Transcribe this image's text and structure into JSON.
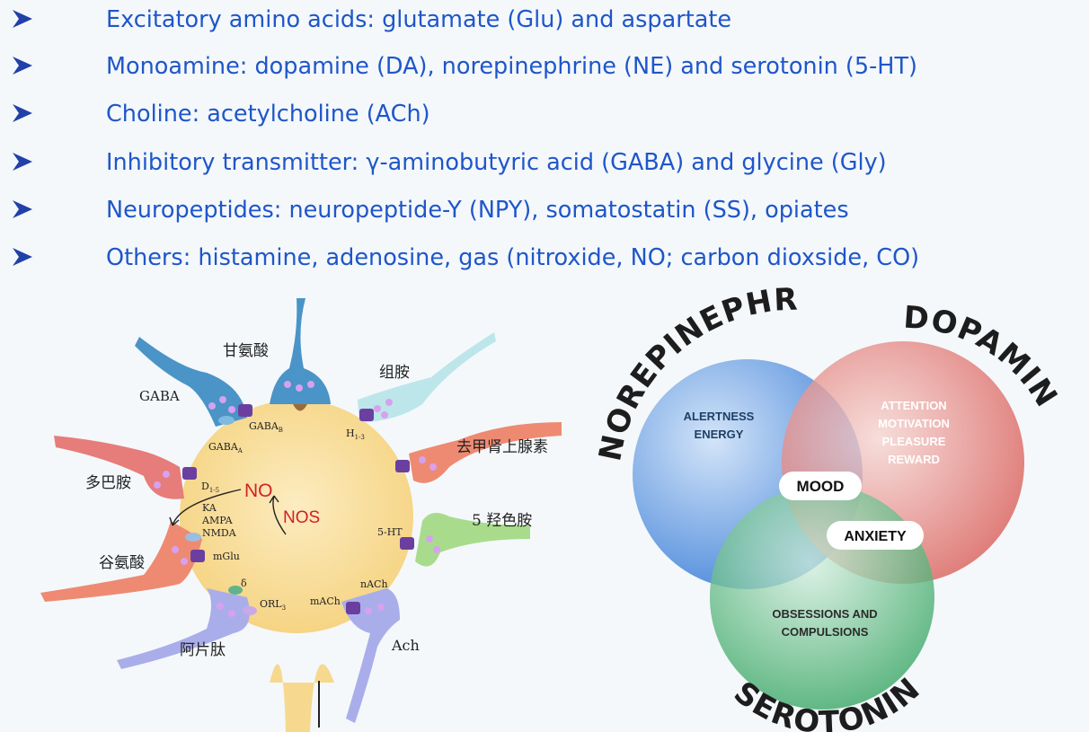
{
  "bullets": [
    "Excitatory amino acids: glutamate (Glu) and aspartate",
    "Monoamine: dopamine (DA), norepinephrine (NE) and serotonin (5-HT)",
    "Choline: acetylcholine (ACh)",
    "Inhibitory transmitter: γ-aminobutyric acid (GABA) and glycine (Gly)",
    "Neuropeptides: neuropeptide-Y (NPY), somatostatin (SS), opiates",
    "Others: histamine, adenosine, gas (nitroxide, NO; carbon dioxside, CO)"
  ],
  "neuron": {
    "glycine": "甘氨酸",
    "gaba": "GABA",
    "histamine": "组胺",
    "norepinephrine": "去甲肾上腺素",
    "dopamine": "多巴胺",
    "serotonin": "5 羟色胺",
    "glutamate": "谷氨酸",
    "opioid": "阿片肽",
    "ach": "Ach",
    "r_gaba_b": "GABA",
    "r_gaba_b_sub": "B",
    "r_gaba_a": "GABA",
    "r_gaba_a_sub": "A",
    "r_h": "H",
    "r_h_sub": "1-3",
    "r_d": "D",
    "r_d_sub": "1-5",
    "no": "NO",
    "nos": "NOS",
    "r_ka": "KA",
    "r_ampa": "AMPA",
    "r_nmda": "NMDA",
    "r_mglu": "mGlu",
    "r_5ht": "5-HT",
    "r_delta": "δ",
    "r_orl": "ORL",
    "r_orl_sub": "3",
    "r_nach": "nACh",
    "r_mach": "mACh"
  },
  "venn": {
    "norepinephrine": "NOREPINEPHRINE",
    "dopamine": "DOPAMINE",
    "serotonin": "SEROTONIN",
    "ne_line1": "ALERTNESS",
    "ne_line2": "ENERGY",
    "da_line1": "ATTENTION",
    "da_line2": "MOTIVATION",
    "da_line3": "PLEASURE",
    "da_line4": "REWARD",
    "mood": "MOOD",
    "anxiety": "ANXIETY",
    "se_line1": "OBSESSIONS AND",
    "se_line2": "COMPULSIONS"
  },
  "colors": {
    "text_blue": "#1f56c9",
    "arrow_blue": "#2140a8",
    "cell": "#f7d88a",
    "red_label": "#d21f25",
    "venn_blue": "#4f8fe0",
    "venn_red": "#e06a66",
    "venn_green": "#3fae6a"
  }
}
